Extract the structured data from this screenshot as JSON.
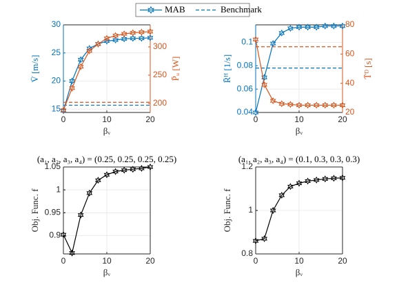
{
  "legend": {
    "items": [
      "MAB",
      "Benchmark"
    ],
    "color": "#0072BD",
    "position": "top"
  },
  "chart_data": [
    {
      "type": "line",
      "xlabel": "βᵥ",
      "ylabel": "V̄ [m/s]",
      "y2label": "P̄ᵤ [W]",
      "x": [
        0,
        2,
        4,
        6,
        8,
        10,
        12,
        14,
        16,
        18,
        20
      ],
      "xlim": [
        0,
        20
      ],
      "xticks": [
        0,
        10,
        20
      ],
      "ylim": [
        14.4,
        30
      ],
      "yticks": [
        15,
        20,
        25,
        30
      ],
      "y2lim": [
        184,
        339
      ],
      "y2ticks": [
        200,
        250,
        300
      ],
      "grid": true,
      "series": [
        {
          "name": "MAB",
          "color": "#0072BD",
          "values": [
            14.7,
            20,
            23.8,
            25.8,
            26.6,
            27.1,
            27.3,
            27.5,
            27.6,
            27.6,
            27.7
          ],
          "benchmark": 15.7
        },
        {
          "name": "MAB",
          "color": "#D95319",
          "axis": "y2",
          "values": [
            188,
            227,
            265,
            293,
            305,
            315,
            320,
            323,
            325,
            326,
            327
          ],
          "benchmark": 202
        }
      ]
    },
    {
      "type": "line",
      "xlabel": "βᵥ",
      "ylabel": "R̄ᴴ [1/s]",
      "y2label": "T̄ᴰ [s]",
      "x": [
        0,
        2,
        4,
        6,
        8,
        10,
        12,
        14,
        16,
        18,
        20
      ],
      "xlim": [
        0,
        20
      ],
      "xticks": [
        0,
        10,
        20
      ],
      "ylim": [
        0.04,
        0.115
      ],
      "yticks": [
        0.04,
        0.06,
        0.08,
        0.1
      ],
      "y2lim": [
        20,
        80
      ],
      "y2ticks": [
        20,
        40,
        60,
        80
      ],
      "grid": true,
      "series": [
        {
          "name": "MAB",
          "color": "#0072BD",
          "values": [
            0.04,
            0.07,
            0.099,
            0.108,
            0.112,
            0.113,
            0.113,
            0.113,
            0.114,
            0.114,
            0.114
          ],
          "benchmark": 0.078
        },
        {
          "name": "MAB",
          "color": "#D95319",
          "axis": "y2",
          "values": [
            70,
            39,
            28,
            26,
            25.5,
            25,
            25,
            25,
            25,
            25,
            25
          ],
          "benchmark": 65
        }
      ]
    },
    {
      "type": "line",
      "title": "(a₁, a₂, a₃, a₄) = (0.25, 0.25, 0.25, 0.25)",
      "xlabel": "βᵥ",
      "ylabel": "Obj. Func. f",
      "x": [
        0,
        2,
        4,
        6,
        8,
        10,
        12,
        14,
        16,
        18,
        20
      ],
      "xlim": [
        0,
        20
      ],
      "xticks": [
        0,
        10,
        20
      ],
      "ylim": [
        0.86,
        1.05
      ],
      "yticks": [
        0.9,
        0.95,
        1,
        1.05
      ],
      "grid": true,
      "series": [
        {
          "name": "MAB",
          "color": "#000000",
          "values": [
            0.902,
            0.862,
            0.945,
            0.993,
            1.021,
            1.033,
            1.04,
            1.043,
            1.045,
            1.047,
            1.05
          ]
        }
      ]
    },
    {
      "type": "line",
      "title": "(a₁, a₂, a₃, a₄) = (0.1, 0.3, 0.3, 0.3)",
      "xlabel": "βᵥ",
      "ylabel": "Obj. Func. f",
      "x": [
        0,
        2,
        4,
        6,
        8,
        10,
        12,
        14,
        16,
        18,
        20
      ],
      "xlim": [
        0,
        20
      ],
      "xticks": [
        0,
        10,
        20
      ],
      "ylim": [
        0.8,
        1.2
      ],
      "yticks": [
        0.8,
        1,
        1.2
      ],
      "grid": true,
      "series": [
        {
          "name": "MAB",
          "color": "#000000",
          "values": [
            0.86,
            0.87,
            1.0,
            1.07,
            1.11,
            1.125,
            1.135,
            1.14,
            1.145,
            1.148,
            1.15
          ]
        }
      ]
    }
  ]
}
